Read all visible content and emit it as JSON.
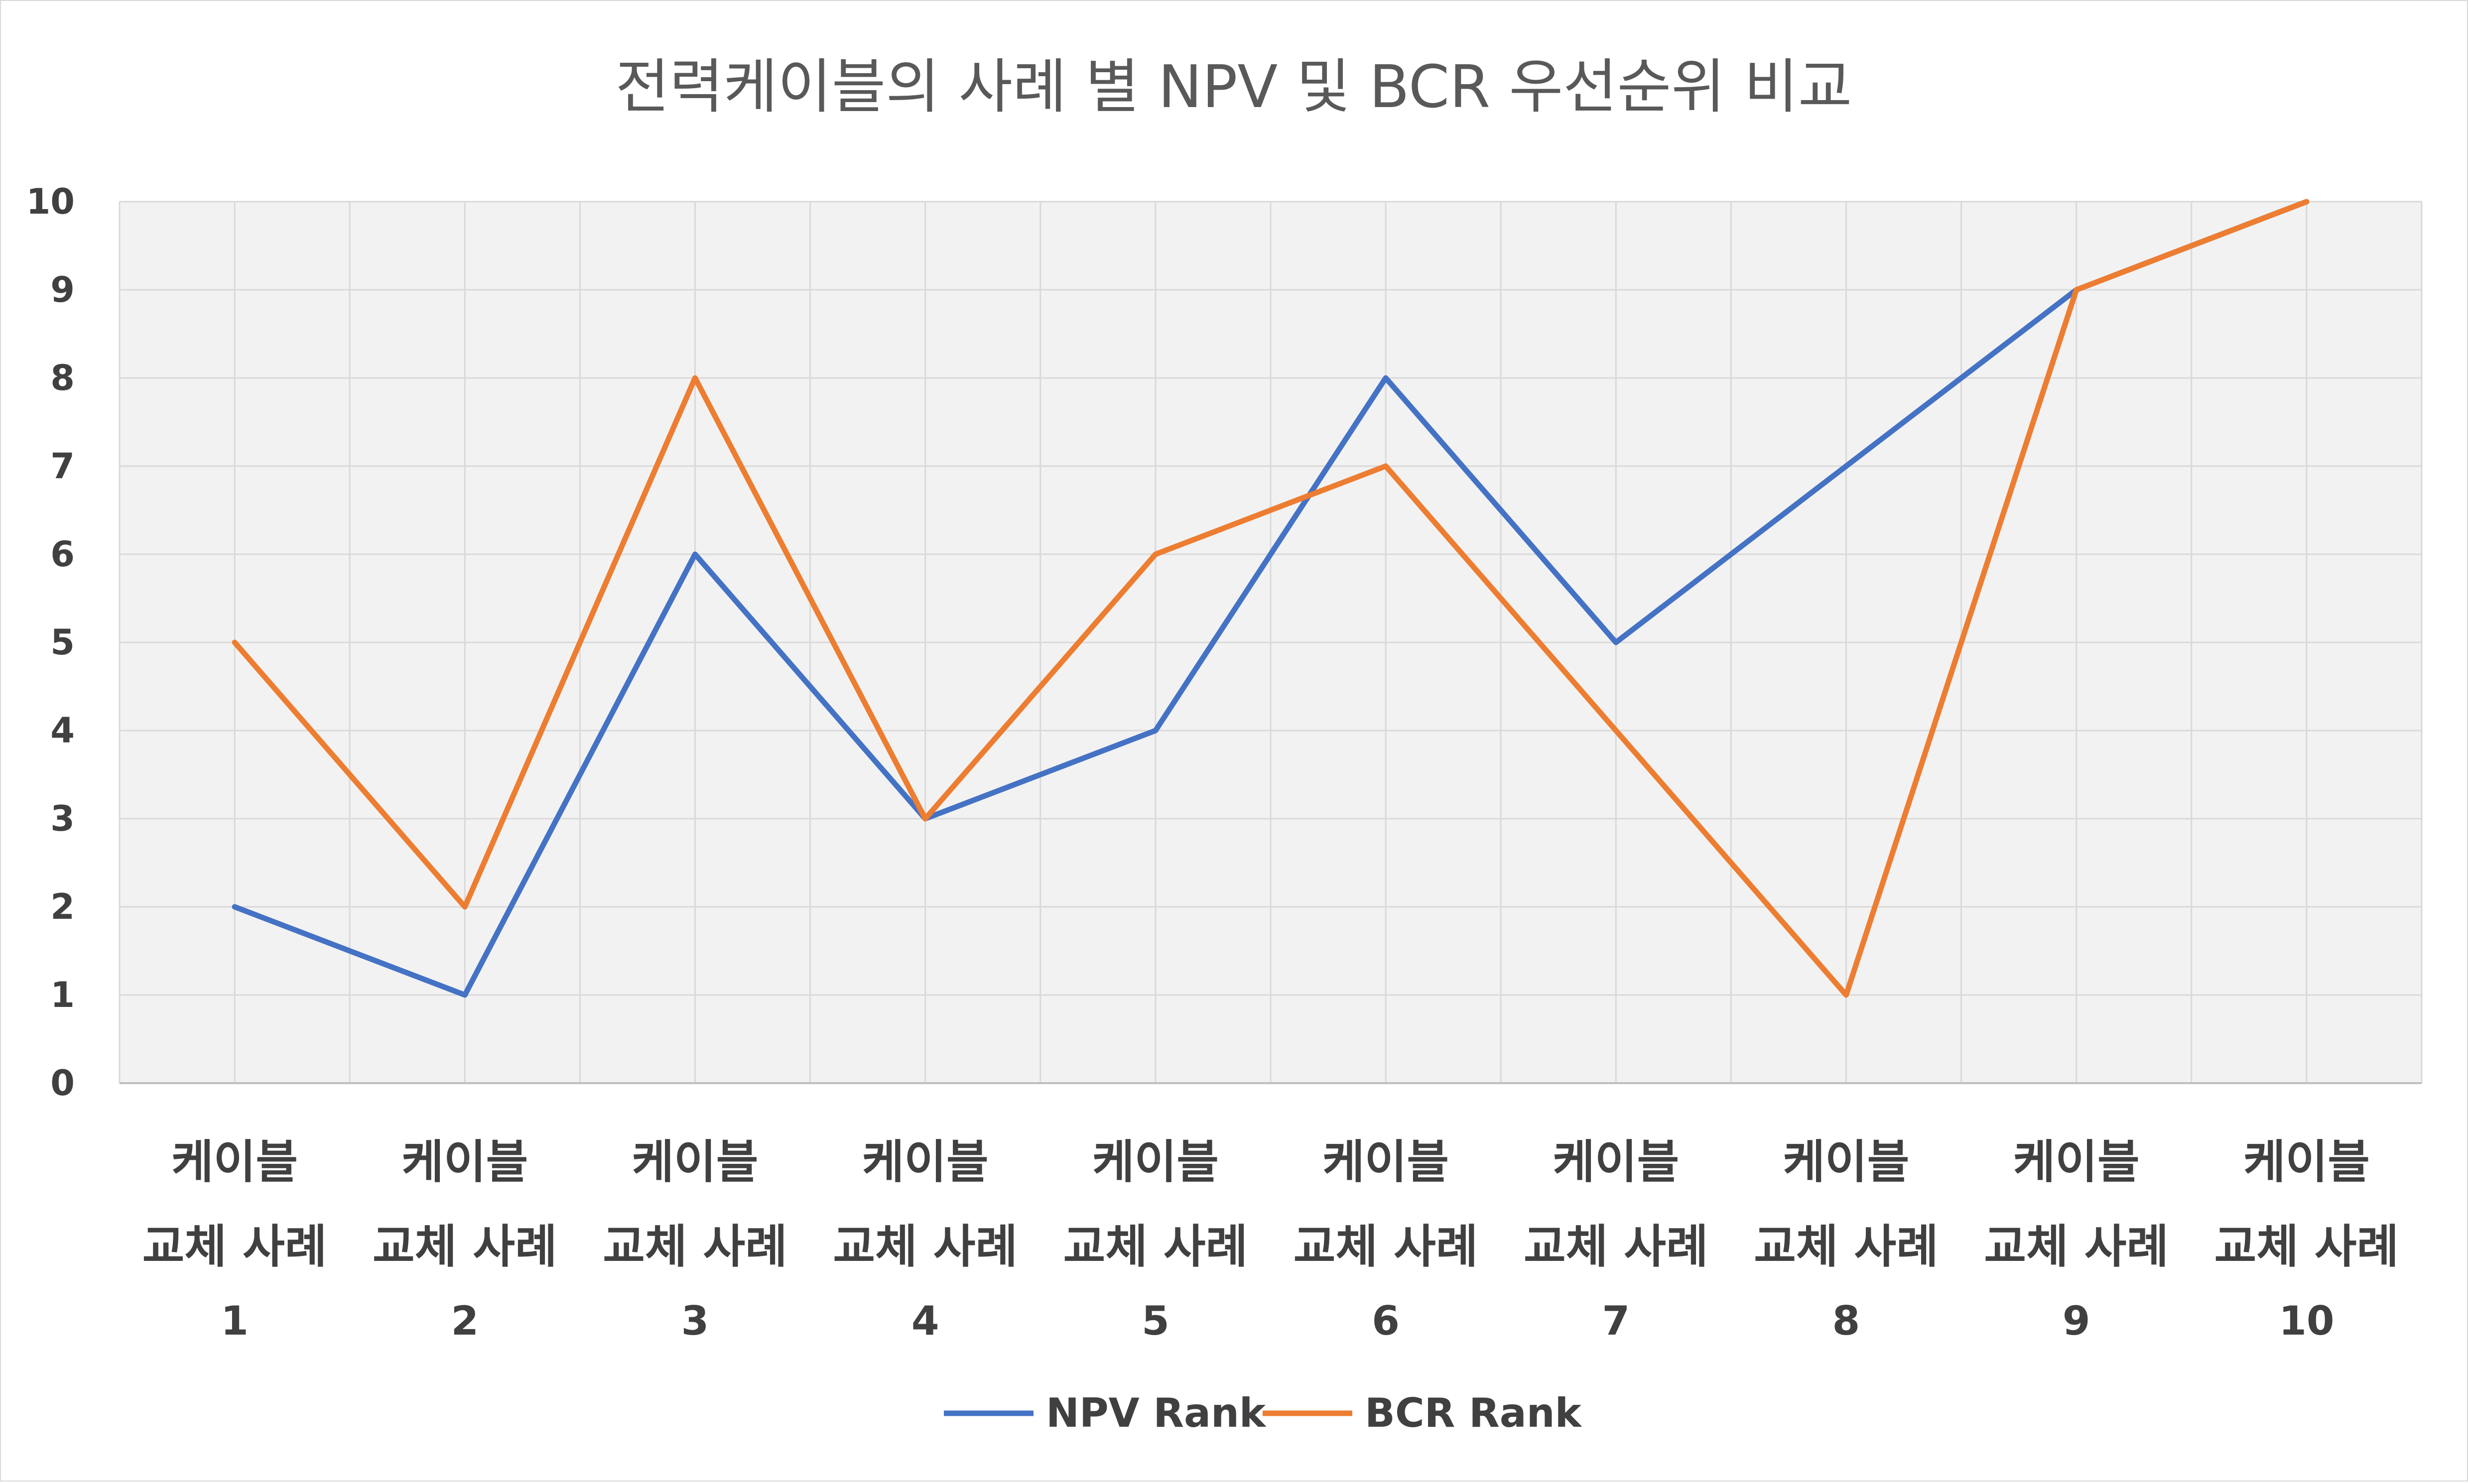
{
  "chart_data": {
    "type": "line",
    "title": "전력케이블의 사례 별 NPV 및 BCR 우선순위 비교",
    "xlabel": "",
    "ylabel": "",
    "ylim": [
      0,
      10
    ],
    "yticks": [
      "0",
      "1",
      "2",
      "3",
      "4",
      "5",
      "6",
      "7",
      "8",
      "9",
      "10"
    ],
    "categories": [
      [
        "케이블",
        "교체 사례",
        "1"
      ],
      [
        "케이블",
        "교체 사례",
        "2"
      ],
      [
        "케이블",
        "교체 사례",
        "3"
      ],
      [
        "케이블",
        "교체 사례",
        "4"
      ],
      [
        "케이블",
        "교체 사례",
        "5"
      ],
      [
        "케이블",
        "교체 사례",
        "6"
      ],
      [
        "케이블",
        "교체 사례",
        "7"
      ],
      [
        "케이블",
        "교체 사례",
        "8"
      ],
      [
        "케이블",
        "교체 사례",
        "9"
      ],
      [
        "케이블",
        "교체 사례",
        "10"
      ]
    ],
    "series": [
      {
        "name": "NPV Rank",
        "color": "#4472C4",
        "values": [
          2,
          1,
          6,
          3,
          4,
          8,
          5,
          7,
          9,
          10
        ]
      },
      {
        "name": "BCR Rank",
        "color": "#ED7D31",
        "values": [
          5,
          2,
          8,
          3,
          6,
          7,
          4,
          1,
          9,
          10
        ]
      }
    ],
    "grid": true,
    "legend_position": "bottom"
  }
}
